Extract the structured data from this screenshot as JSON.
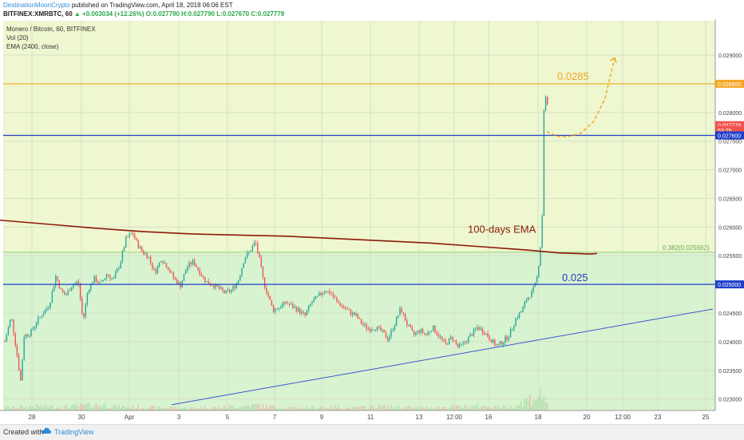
{
  "header": {
    "author": "DestinationMoonCrypto",
    "published_text": " published on TradingView.com, April 18, 2018 06:06 EST",
    "symbol": "BITFINEX:XMRBTC, 60",
    "change": "+0.003034 (+12.26%)",
    "ohlc": "O:0.027790 H:0.027790 L:0.027670 C:0.027779"
  },
  "legend": {
    "line1": "Monero / Bitcoin, 60, BITFINEX",
    "line2": "Vol (20)",
    "line3": "EMA (2400, close)"
  },
  "footer": {
    "created_with": "Created with",
    "brand": "TradingView"
  },
  "colors": {
    "up": "#26a69a",
    "down": "#ef5350",
    "ema": "#8b1a0a",
    "level_blue": "#1f3ec9",
    "level_orange": "#f5a623",
    "fib_zone_upper": "#eef7cf",
    "fib_zone_lower": "#d8f3cf"
  },
  "chart_data": {
    "type": "candlestick",
    "x_tick_labels": [
      "28",
      "30",
      "Apr",
      "3",
      "5",
      "7",
      "9",
      "11",
      "13",
      "12:00",
      "16",
      "18",
      "20",
      "12:00",
      "23",
      "25"
    ],
    "y_tick_labels": [
      "0.023000",
      "0.023500",
      "0.024000",
      "0.024500",
      "0.025000",
      "0.025500",
      "0.026000",
      "0.026500",
      "0.027000",
      "0.027500",
      "0.028000",
      "0.028500",
      "0.029000"
    ],
    "ylim": [
      0.0228,
      0.0296
    ],
    "price_labels": [
      {
        "text": "0.028500",
        "value": 0.0285,
        "color": "#f5a623"
      },
      {
        "text": "0.027779",
        "value": 0.027779,
        "color": "#ef5350"
      },
      {
        "text": "53:25",
        "value": 0.02769,
        "color": "#ef5350"
      },
      {
        "text": "0.027600",
        "value": 0.0276,
        "color": "#1f3ec9"
      },
      {
        "text": "0.025000",
        "value": 0.025,
        "color": "#1f3ec9"
      }
    ],
    "horizontal_levels": [
      {
        "value": 0.0285,
        "label": "0.0285",
        "color": "#f5a623"
      },
      {
        "value": 0.0276,
        "color": "#1f3ec9"
      },
      {
        "value": 0.025,
        "label": "0.025",
        "color": "#1f3ec9"
      }
    ],
    "fib_label": "0.382(0.025562)",
    "fib_level": 0.025562,
    "ema_label": "100-days EMA",
    "ema": [
      [
        0,
        0.02612
      ],
      [
        60,
        0.02605
      ],
      [
        120,
        0.02598
      ],
      [
        180,
        0.02592
      ],
      [
        240,
        0.02588
      ],
      [
        300,
        0.02586
      ],
      [
        360,
        0.02584
      ],
      [
        420,
        0.0258
      ],
      [
        480,
        0.02576
      ],
      [
        540,
        0.02572
      ],
      [
        600,
        0.02566
      ],
      [
        660,
        0.0256
      ],
      [
        700,
        0.02555
      ],
      [
        740,
        0.02553
      ],
      [
        748,
        0.02554
      ]
    ],
    "trendline": {
      "from": [
        215,
        0.0229
      ],
      "to": [
        893,
        0.02457
      ]
    },
    "projection": [
      [
        685,
        0.02766
      ],
      [
        700,
        0.02758
      ],
      [
        712,
        0.02758
      ],
      [
        728,
        0.02764
      ],
      [
        744,
        0.02785
      ],
      [
        758,
        0.02825
      ],
      [
        766,
        0.02872
      ],
      [
        770,
        0.02895
      ]
    ],
    "price_path": [
      [
        6,
        0.024
      ],
      [
        14,
        0.02445
      ],
      [
        20,
        0.0239
      ],
      [
        26,
        0.0233
      ],
      [
        30,
        0.0241
      ],
      [
        38,
        0.02415
      ],
      [
        46,
        0.02435
      ],
      [
        54,
        0.0245
      ],
      [
        62,
        0.02465
      ],
      [
        70,
        0.02515
      ],
      [
        76,
        0.0249
      ],
      [
        82,
        0.0248
      ],
      [
        90,
        0.02498
      ],
      [
        98,
        0.02505
      ],
      [
        104,
        0.02435
      ],
      [
        110,
        0.0249
      ],
      [
        118,
        0.0251
      ],
      [
        126,
        0.025
      ],
      [
        134,
        0.02518
      ],
      [
        142,
        0.02508
      ],
      [
        150,
        0.02535
      ],
      [
        158,
        0.0258
      ],
      [
        166,
        0.0259
      ],
      [
        172,
        0.0257
      ],
      [
        178,
        0.02558
      ],
      [
        186,
        0.02548
      ],
      [
        194,
        0.0252
      ],
      [
        202,
        0.02545
      ],
      [
        210,
        0.0253
      ],
      [
        218,
        0.0251
      ],
      [
        226,
        0.02498
      ],
      [
        234,
        0.0253
      ],
      [
        242,
        0.0254
      ],
      [
        250,
        0.02522
      ],
      [
        258,
        0.02505
      ],
      [
        266,
        0.025
      ],
      [
        274,
        0.02493
      ],
      [
        282,
        0.02485
      ],
      [
        290,
        0.0249
      ],
      [
        298,
        0.02505
      ],
      [
        306,
        0.02545
      ],
      [
        314,
        0.0256
      ],
      [
        320,
        0.02575
      ],
      [
        324,
        0.0255
      ],
      [
        330,
        0.02505
      ],
      [
        336,
        0.0248
      ],
      [
        342,
        0.02455
      ],
      [
        350,
        0.0246
      ],
      [
        358,
        0.02468
      ],
      [
        366,
        0.02462
      ],
      [
        374,
        0.02455
      ],
      [
        382,
        0.02445
      ],
      [
        390,
        0.02468
      ],
      [
        398,
        0.02478
      ],
      [
        406,
        0.0249
      ],
      [
        414,
        0.02485
      ],
      [
        422,
        0.0247
      ],
      [
        430,
        0.0246
      ],
      [
        438,
        0.02452
      ],
      [
        446,
        0.02445
      ],
      [
        454,
        0.0243
      ],
      [
        462,
        0.02422
      ],
      [
        470,
        0.02425
      ],
      [
        478,
        0.02418
      ],
      [
        486,
        0.02405
      ],
      [
        494,
        0.0243
      ],
      [
        502,
        0.02458
      ],
      [
        510,
        0.0243
      ],
      [
        518,
        0.02412
      ],
      [
        526,
        0.0242
      ],
      [
        534,
        0.02412
      ],
      [
        542,
        0.02425
      ],
      [
        550,
        0.0241
      ],
      [
        558,
        0.02395
      ],
      [
        566,
        0.02408
      ],
      [
        574,
        0.0239
      ],
      [
        582,
        0.02398
      ],
      [
        590,
        0.02412
      ],
      [
        598,
        0.02425
      ],
      [
        606,
        0.02418
      ],
      [
        614,
        0.02405
      ],
      [
        622,
        0.02392
      ],
      [
        630,
        0.024
      ],
      [
        638,
        0.02412
      ],
      [
        646,
        0.0244
      ],
      [
        654,
        0.02455
      ],
      [
        660,
        0.02475
      ],
      [
        666,
        0.02485
      ],
      [
        672,
        0.02505
      ],
      [
        676,
        0.0255
      ],
      [
        679,
        0.026
      ],
      [
        681,
        0.028
      ],
      [
        683,
        0.0283
      ],
      [
        686,
        0.0281
      ],
      [
        688,
        0.02778
      ]
    ],
    "volume_path": [
      [
        6,
        0.15
      ],
      [
        40,
        0.25
      ],
      [
        80,
        0.2
      ],
      [
        120,
        0.35
      ],
      [
        160,
        0.2
      ],
      [
        200,
        0.18
      ],
      [
        240,
        0.15
      ],
      [
        280,
        0.2
      ],
      [
        320,
        0.3
      ],
      [
        360,
        0.15
      ],
      [
        400,
        0.2
      ],
      [
        440,
        0.15
      ],
      [
        480,
        0.25
      ],
      [
        520,
        0.15
      ],
      [
        560,
        0.2
      ],
      [
        600,
        0.25
      ],
      [
        640,
        0.2
      ],
      [
        680,
        1.0
      ],
      [
        688,
        0.3
      ]
    ]
  }
}
